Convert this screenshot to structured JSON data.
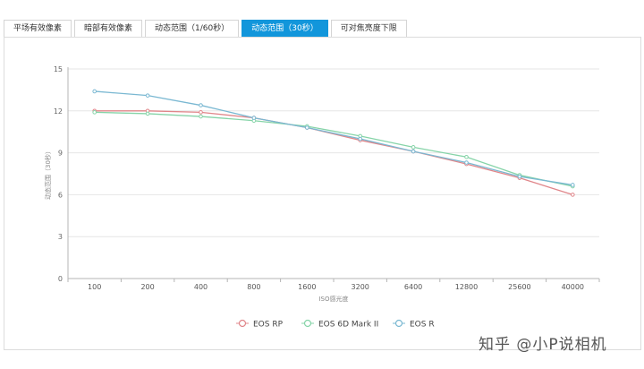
{
  "tabs": [
    {
      "label": "平场有效像素",
      "active": false
    },
    {
      "label": "暗部有效像素",
      "active": false
    },
    {
      "label": "动态范围（1/60秒）",
      "active": false
    },
    {
      "label": "动态范围（30秒）",
      "active": true
    },
    {
      "label": "可对焦亮度下限",
      "active": false
    }
  ],
  "watermark": "知乎 @小P说相机",
  "chart_data": {
    "type": "line",
    "categories": [
      "100",
      "200",
      "400",
      "800",
      "1600",
      "3200",
      "6400",
      "12800",
      "25600",
      "40000"
    ],
    "xlabel": "ISO感光度",
    "ylabel": "动态范围（30秒）",
    "ylim": [
      0,
      15
    ],
    "yticks": [
      0,
      3,
      6,
      9,
      12,
      15
    ],
    "grid": true,
    "legend_position": "bottom-center",
    "series": [
      {
        "name": "EOS RP",
        "color": "#e0868a",
        "values": [
          12.0,
          12.0,
          11.9,
          11.5,
          10.8,
          9.9,
          9.1,
          8.2,
          7.2,
          6.0
        ]
      },
      {
        "name": "EOS 6D Mark II",
        "color": "#86d4a8",
        "values": [
          11.9,
          11.8,
          11.6,
          11.3,
          10.9,
          10.2,
          9.4,
          8.7,
          7.4,
          6.6
        ]
      },
      {
        "name": "EOS R",
        "color": "#7ab8d2",
        "values": [
          13.4,
          13.1,
          12.4,
          11.5,
          10.8,
          10.0,
          9.1,
          8.3,
          7.3,
          6.7
        ]
      }
    ]
  }
}
